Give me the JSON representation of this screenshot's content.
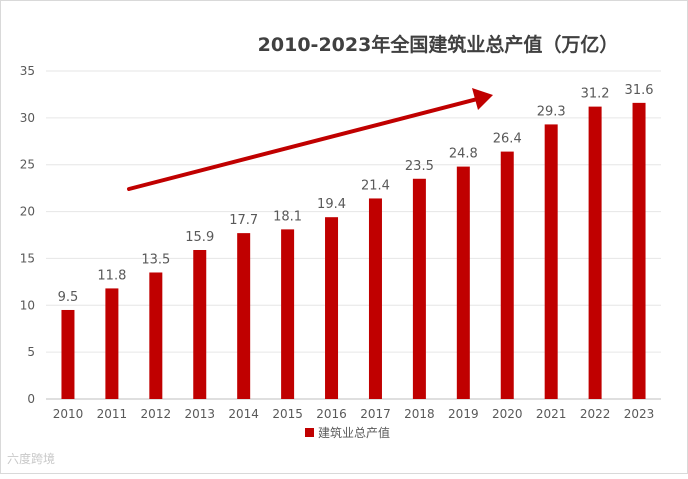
{
  "chart_data": {
    "type": "bar",
    "title": "2010-2023年全国建筑业总产值（万亿）",
    "categories": [
      "2010",
      "2011",
      "2012",
      "2013",
      "2014",
      "2015",
      "2016",
      "2017",
      "2018",
      "2019",
      "2020",
      "2021",
      "2022",
      "2023"
    ],
    "series": [
      {
        "name": "建筑业总产值",
        "values": [
          9.5,
          11.8,
          13.5,
          15.9,
          17.7,
          18.1,
          19.4,
          21.4,
          23.5,
          24.8,
          26.4,
          29.3,
          31.2,
          31.6
        ],
        "color": "#c00000"
      }
    ],
    "ylim": [
      0,
      35
    ],
    "yticks": [
      0,
      5,
      10,
      15,
      20,
      25,
      30,
      35
    ],
    "grid": true,
    "legend_position": "bottom",
    "annotation": "trend-arrow",
    "arrow_color": "#c00000"
  },
  "watermark": "六度跨境"
}
